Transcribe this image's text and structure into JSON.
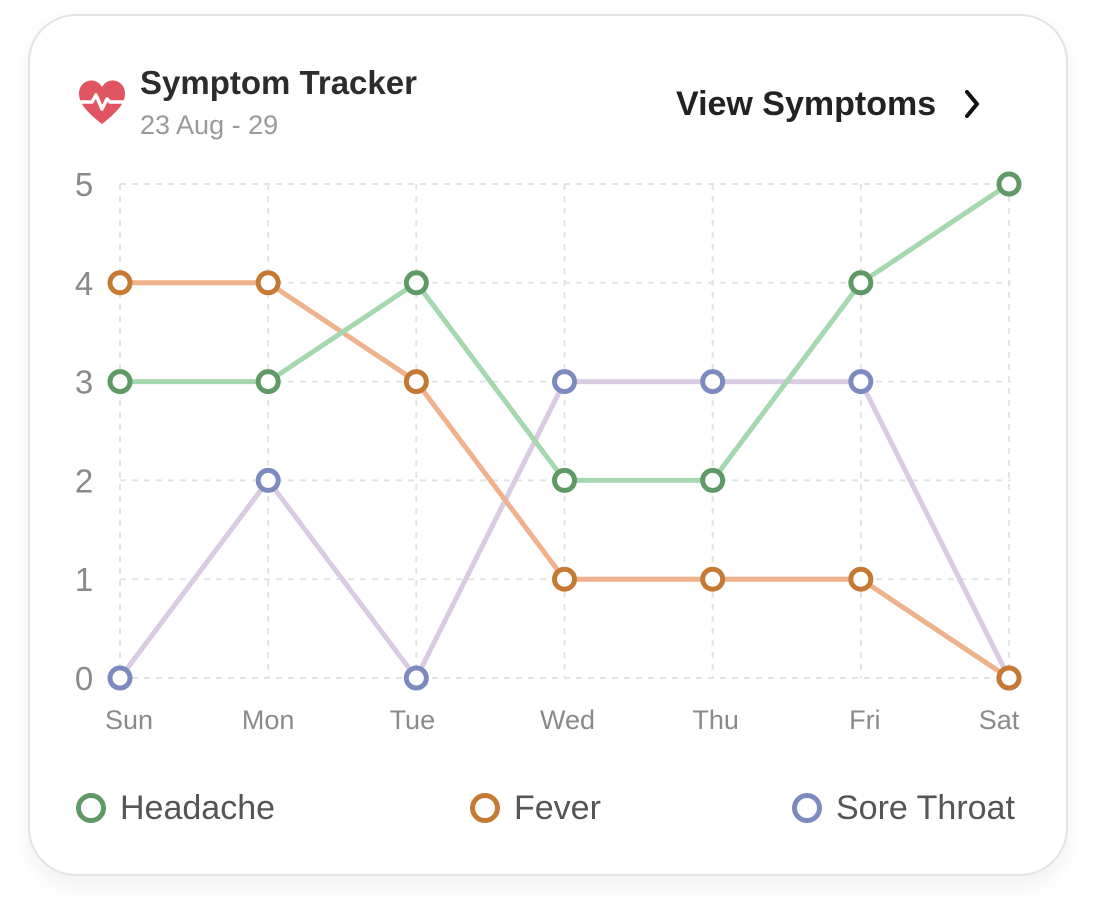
{
  "header": {
    "title": "Symptom Tracker",
    "subtitle": "23 Aug - 29",
    "view_link": "View Symptoms",
    "title_icon": "heart-pulse-icon",
    "link_icon": "chevron-right-icon"
  },
  "colors": {
    "heart": "#e05561",
    "grid": "#e3e3e3",
    "tick_text": "#8a8a8a"
  },
  "chart_data": {
    "type": "line",
    "categories": [
      "Sun",
      "Mon",
      "Tue",
      "Wed",
      "Thu",
      "Fri",
      "Sat"
    ],
    "ylim": [
      0,
      5
    ],
    "yticks": [
      "0",
      "1",
      "2",
      "3",
      "4",
      "5"
    ],
    "grid": true,
    "legend_position": "bottom",
    "series": [
      {
        "name": "Headache",
        "values": [
          3,
          3,
          4,
          2,
          2,
          4,
          5
        ],
        "line_color": "#a6d8b0",
        "marker_color": "#5e9a66"
      },
      {
        "name": "Fever",
        "values": [
          4,
          4,
          3,
          1,
          1,
          1,
          0
        ],
        "line_color": "#f0b18d",
        "marker_color": "#c47a35"
      },
      {
        "name": "Sore Throat",
        "values": [
          0,
          2,
          0,
          3,
          3,
          3,
          0
        ],
        "line_color": "#d9cbe2",
        "marker_color": "#7d8ac0"
      }
    ]
  }
}
